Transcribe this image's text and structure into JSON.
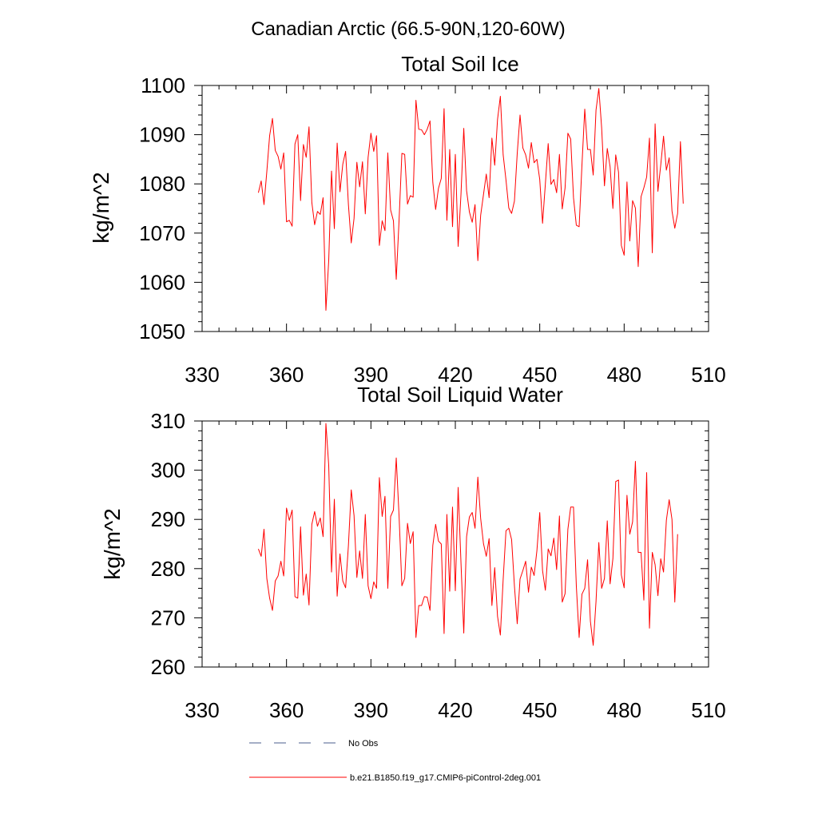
{
  "figure": {
    "suptitle": "Canadian Arctic (66.5-90N,120-60W)",
    "legend": [
      {
        "label": "No Obs",
        "color": "#4b5d8c",
        "dash": true
      },
      {
        "label": "b.e21.B1850.f19_g17.CMIP6-piControl-2deg.001",
        "color": "#ff0000",
        "dash": false
      }
    ]
  },
  "chart_data": [
    {
      "type": "line",
      "title": "Total Soil Ice",
      "ylabel": "kg/m^2",
      "xlabel": "",
      "xlim": [
        330,
        510
      ],
      "ylim": [
        1050,
        1100
      ],
      "xticks": [
        330,
        360,
        390,
        420,
        450,
        480,
        510
      ],
      "yticks": [
        1050,
        1060,
        1070,
        1080,
        1090,
        1100
      ],
      "grid": false,
      "x_start": 350,
      "series": [
        {
          "color": "#ff0000",
          "values": [
            1078.2,
            1080.6,
            1075.8,
            1082.5,
            1089.8,
            1093.3,
            1086.8,
            1085.6,
            1083.0,
            1086.3,
            1072.3,
            1072.6,
            1071.4,
            1088.1,
            1090.0,
            1076.6,
            1088.0,
            1085.4,
            1091.6,
            1076.2,
            1071.7,
            1074.4,
            1073.8,
            1077.2,
            1054.3,
            1064.4,
            1082.6,
            1070.9,
            1088.3,
            1078.4,
            1084.0,
            1086.6,
            1075.8,
            1068.0,
            1073.0,
            1084.4,
            1079.4,
            1084.5,
            1073.9,
            1085.4,
            1090.3,
            1086.6,
            1089.8,
            1067.5,
            1072.5,
            1070.5,
            1086.3,
            1074.7,
            1072.5,
            1060.6,
            1072.6,
            1086.2,
            1086.0,
            1075.9,
            1077.6,
            1077.3,
            1097.0,
            1091.1,
            1091.0,
            1090.0,
            1091.1,
            1092.8,
            1080.3,
            1074.8,
            1079.1,
            1081.1,
            1095.3,
            1072.6,
            1087.0,
            1071.3,
            1086.0,
            1067.3,
            1077.8,
            1091.3,
            1078.6,
            1074.3,
            1072.2,
            1075.8,
            1064.4,
            1073.6,
            1077.8,
            1082.0,
            1077.2,
            1089.3,
            1083.8,
            1093.1,
            1097.8,
            1085.9,
            1080.8,
            1075.1,
            1074.0,
            1076.5,
            1086.2,
            1094.0,
            1087.3,
            1085.9,
            1083.2,
            1088.4,
            1084.3,
            1085.0,
            1080.9,
            1072.0,
            1080.0,
            1088.2,
            1079.9,
            1080.9,
            1078.2,
            1086.0,
            1074.9,
            1079.2,
            1090.3,
            1089.1,
            1077.2,
            1071.6,
            1071.3,
            1083.8,
            1095.2,
            1087.0,
            1087.0,
            1081.8,
            1095.0,
            1099.4,
            1091.4,
            1079.6,
            1087.2,
            1083.5,
            1075.0,
            1085.9,
            1082.4,
            1067.5,
            1065.5,
            1080.4,
            1068.4,
            1076.6,
            1075.1,
            1063.2,
            1077.4,
            1079.2,
            1081.4,
            1089.3,
            1066.0,
            1092.2,
            1078.5,
            1083.8,
            1089.7,
            1082.8,
            1085.3,
            1074.5,
            1071.0,
            1074.0,
            1088.6,
            1076.0
          ]
        }
      ]
    },
    {
      "type": "line",
      "title": "Total Soil Liquid Water",
      "ylabel": "kg/m^2",
      "xlabel": "",
      "xlim": [
        330,
        510
      ],
      "ylim": [
        260,
        310
      ],
      "xticks": [
        330,
        360,
        390,
        420,
        450,
        480,
        510
      ],
      "yticks": [
        260,
        270,
        280,
        290,
        300,
        310
      ],
      "grid": false,
      "x_start": 350,
      "series": [
        {
          "color": "#ff0000",
          "values": [
            284.0,
            282.5,
            288.0,
            278.0,
            274.0,
            271.5,
            277.5,
            278.5,
            281.5,
            278.5,
            292.3,
            289.8,
            291.9,
            274.3,
            274.0,
            288.5,
            274.6,
            278.9,
            272.6,
            289.0,
            291.6,
            288.6,
            290.3,
            286.5,
            309.5,
            301.0,
            279.3,
            294.1,
            274.4,
            283.0,
            277.5,
            276.1,
            284.7,
            296.0,
            290.8,
            278.2,
            283.6,
            278.0,
            291.0,
            276.5,
            273.9,
            277.3,
            276.0,
            298.5,
            290.6,
            294.7,
            276.0,
            290.6,
            291.9,
            302.5,
            290.7,
            276.5,
            278.0,
            289.2,
            285.1,
            287.5,
            266.0,
            272.5,
            272.5,
            274.3,
            274.2,
            271.5,
            284.7,
            289.0,
            285.6,
            285.0,
            266.8,
            291.0,
            275.4,
            292.5,
            275.5,
            296.5,
            281.3,
            266.9,
            286.5,
            290.5,
            291.4,
            288.2,
            298.6,
            290.2,
            285.1,
            282.5,
            286.1,
            272.5,
            280.2,
            270.3,
            266.5,
            277.8,
            287.7,
            288.2,
            285.9,
            276.5,
            268.8,
            277.9,
            279.6,
            281.5,
            275.2,
            280.3,
            278.6,
            283.7,
            291.4,
            279.6,
            275.6,
            284.0,
            282.6,
            286.2,
            279.8,
            290.7,
            273.2,
            274.9,
            288.0,
            292.5,
            292.5,
            276.5,
            266.0,
            274.8,
            276.0,
            281.8,
            269.3,
            264.4,
            273.3,
            285.3,
            276.0,
            278.0,
            289.7,
            276.9,
            282.0,
            297.7,
            298.0,
            278.7,
            276.1,
            294.9,
            287.0,
            289.5,
            301.8,
            283.3,
            283.3,
            273.6,
            299.5,
            267.9,
            283.3,
            280.8,
            274.5,
            282.0,
            279.3,
            289.8,
            294.0,
            290.0,
            273.2,
            287.0
          ]
        }
      ]
    }
  ]
}
